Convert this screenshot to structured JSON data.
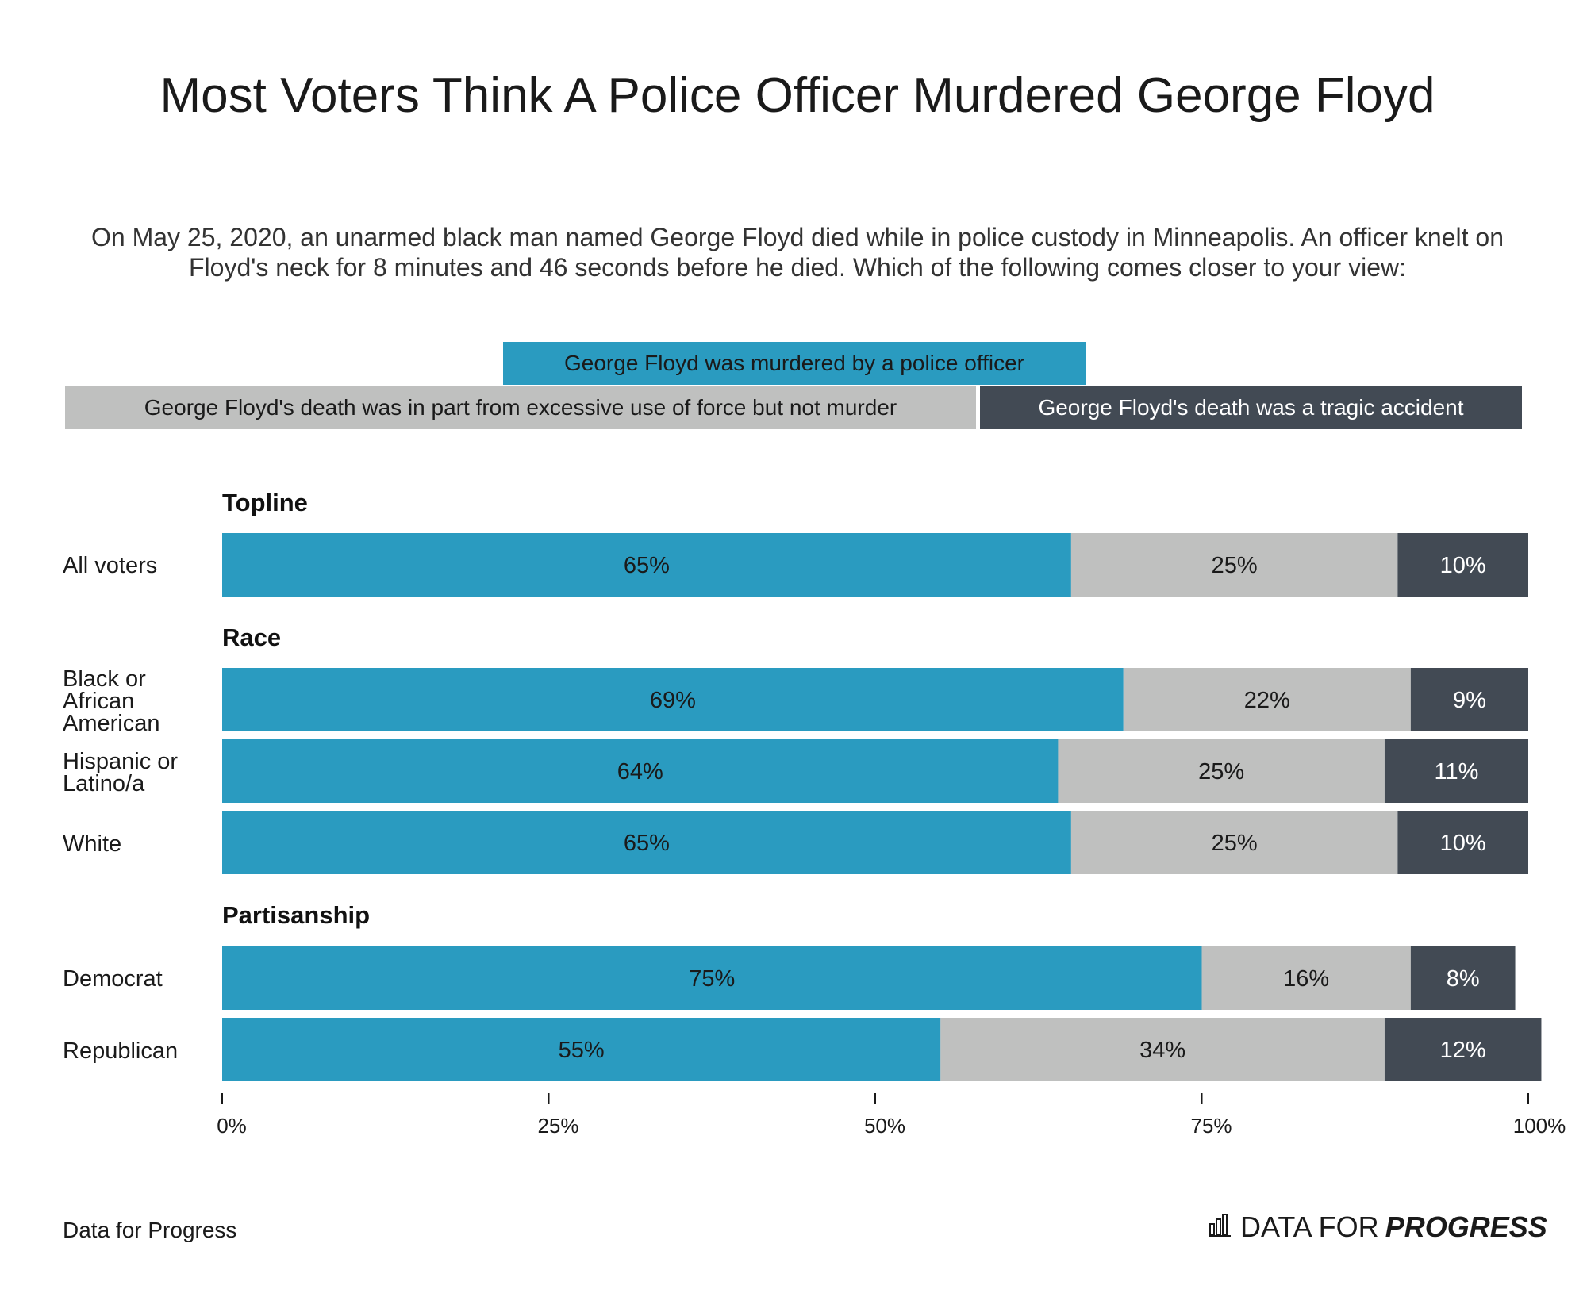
{
  "chart_data": {
    "type": "bar",
    "orientation": "horizontal",
    "stacked": true,
    "title": "Most Voters Think A Police Officer Murdered George Floyd",
    "subtitle": "On May 25, 2020, an unarmed black man named George Floyd died while in police custody in Minneapolis. An officer knelt on Floyd's neck for 8 minutes and 46 seconds before he died. Which of the following comes closer to your view:",
    "series": [
      {
        "name": "George Floyd was murdered by a police officer",
        "color": "#2a9bc0"
      },
      {
        "name": "George Floyd's death was in part from excessive use of force but not murder",
        "color": "#bfc0bf"
      },
      {
        "name": "George Floyd's death was a tragic accident",
        "color": "#424a54"
      }
    ],
    "groups": [
      {
        "name": "Topline",
        "rows": [
          {
            "label": "All voters",
            "values": [
              65,
              25,
              10
            ],
            "value_labels": [
              "65%",
              "25%",
              "10%"
            ]
          }
        ]
      },
      {
        "name": "Race",
        "rows": [
          {
            "label": "Black or African American",
            "values": [
              69,
              22,
              9
            ],
            "value_labels": [
              "69%",
              "22%",
              "9%"
            ]
          },
          {
            "label": "Hispanic or Latino/a",
            "values": [
              64,
              25,
              11
            ],
            "value_labels": [
              "64%",
              "25%",
              "11%"
            ]
          },
          {
            "label": "White",
            "values": [
              65,
              25,
              10
            ],
            "value_labels": [
              "65%",
              "25%",
              "10%"
            ]
          }
        ]
      },
      {
        "name": "Partisanship",
        "rows": [
          {
            "label": "Democrat",
            "values": [
              75,
              16,
              8
            ],
            "value_labels": [
              "75%",
              "16%",
              "8%"
            ]
          },
          {
            "label": "Republican",
            "values": [
              55,
              34,
              12
            ],
            "value_labels": [
              "55%",
              "34%",
              "12%"
            ]
          }
        ]
      }
    ],
    "xlim": [
      0,
      100
    ],
    "x_ticks": [
      0,
      25,
      50,
      75,
      100
    ],
    "x_tick_labels": [
      "0%",
      "25%",
      "50%",
      "75%",
      "100%"
    ],
    "grid": false,
    "legend_position": "top"
  },
  "source": "Data for Progress",
  "brand": {
    "text_regular": "DATA FOR",
    "text_bold": "PROGRESS",
    "icon": "bar-chart-icon"
  }
}
